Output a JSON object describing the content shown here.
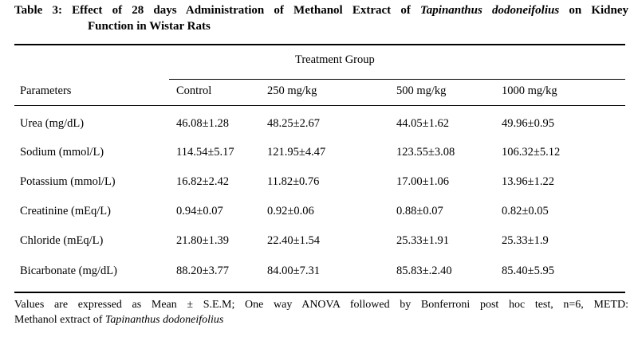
{
  "table": {
    "caption": {
      "line1_prefix": "Table 3: Effect of 28 days Administration of Methanol Extract of",
      "line1_species": "Tapinanthus dodoneifolius",
      "line1_suffix": "on Kidney",
      "line2": "Function in Wistar Rats"
    },
    "group_header": "Treatment Group",
    "columns": [
      "Parameters",
      "Control",
      "250 mg/kg",
      "500 mg/kg",
      "1000 mg/kg"
    ],
    "rows": [
      [
        "Urea (mg/dL)",
        "46.08±1.28",
        "48.25±2.67",
        "44.05±1.62",
        "49.96±0.95"
      ],
      [
        "Sodium (mmol/L)",
        "114.54±5.17",
        "121.95±4.47",
        "123.55±3.08",
        "106.32±5.12"
      ],
      [
        "Potassium  (mmol/L)",
        "16.82±2.42",
        "11.82±0.76",
        "17.00±1.06",
        "13.96±1.22"
      ],
      [
        "Creatinine (mEq/L)",
        "0.94±0.07",
        "0.92±0.06",
        "0.88±0.07",
        "0.82±0.05"
      ],
      [
        "Chloride (mEq/L)",
        "21.80±1.39",
        "22.40±1.54",
        "25.33±1.91",
        "25.33±1.9"
      ],
      [
        "Bicarbonate (mg/dL)",
        "88.20±3.77",
        "84.00±7.31",
        "85.83±.2.40",
        "85.40±5.95"
      ]
    ],
    "footnote": {
      "line1": "Values are expressed as Mean ± S.E.M; One way ANOVA followed by Bonferroni post hoc test, n=6, METD:",
      "line2_prefix": "Methanol extract of",
      "line2_species": "Tapinanthus dodoneifolius"
    }
  }
}
